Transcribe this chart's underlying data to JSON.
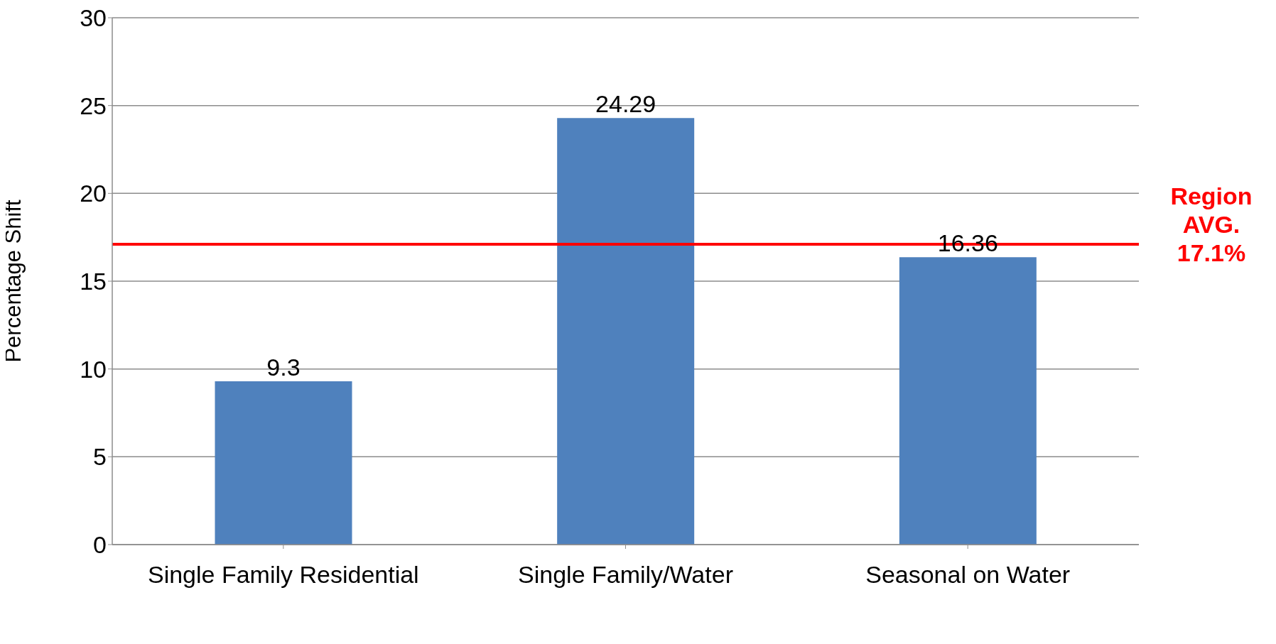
{
  "chart_data": {
    "type": "bar",
    "ylabel": "Percentage Shift",
    "categories": [
      "Single Family Residential",
      "Single Family/Water",
      "Seasonal on Water"
    ],
    "values": [
      9.3,
      24.29,
      16.36
    ],
    "color": "#4f81bd",
    "ylim": [
      0,
      30
    ],
    "yticks": [
      0,
      5,
      10,
      15,
      20,
      25,
      30
    ],
    "grid": "y",
    "data_labels": true,
    "ref_lines": [
      {
        "axis": "y",
        "value": 17.1,
        "label": "Region AVG. 17.1%",
        "color": "#ff0000",
        "line_style": "solid"
      }
    ]
  }
}
